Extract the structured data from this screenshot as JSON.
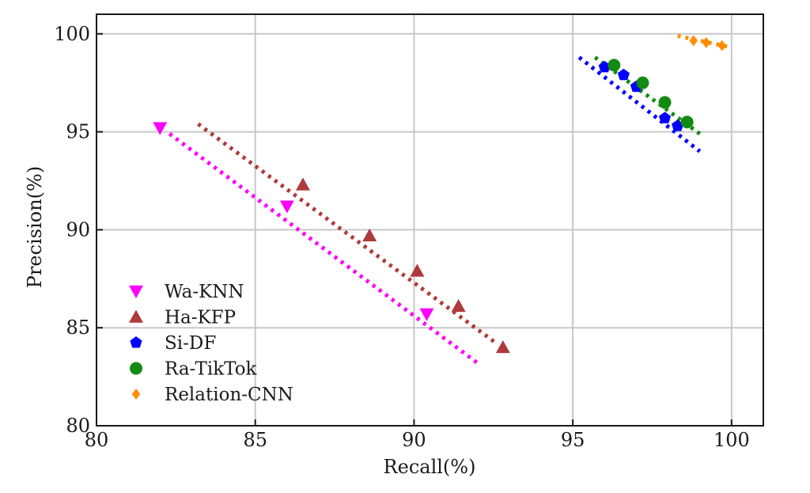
{
  "chart_data": {
    "type": "scatter",
    "xlabel": "Recall(%)",
    "ylabel": "Precision(%)",
    "xlim": [
      80,
      101
    ],
    "ylim": [
      80,
      101
    ],
    "xticks": [
      80,
      85,
      90,
      95,
      100
    ],
    "yticks": [
      80,
      85,
      90,
      95,
      100
    ],
    "grid": true,
    "legend_position": "lower-left",
    "series": [
      {
        "name": "Wa-KNN",
        "marker": "triangle-down",
        "color": "#ff00ff",
        "points": [
          [
            82.0,
            95.2
          ],
          [
            86.0,
            91.2
          ],
          [
            90.4,
            85.7
          ]
        ],
        "trend": [
          [
            82.3,
            94.9
          ],
          [
            92.0,
            83.2
          ]
        ]
      },
      {
        "name": "Ha-KFP",
        "marker": "triangle-up",
        "color": "#b03a3a",
        "points": [
          [
            86.5,
            92.3
          ],
          [
            88.6,
            89.7
          ],
          [
            90.1,
            87.9
          ],
          [
            91.4,
            86.1
          ],
          [
            92.8,
            84.0
          ]
        ],
        "trend": [
          [
            83.2,
            95.4
          ],
          [
            92.6,
            84.2
          ]
        ]
      },
      {
        "name": "Si-DF",
        "marker": "pentagon",
        "color": "#0000ff",
        "points": [
          [
            96.0,
            98.3
          ],
          [
            96.6,
            97.9
          ],
          [
            97.0,
            97.3
          ],
          [
            97.9,
            95.7
          ],
          [
            98.3,
            95.3
          ]
        ],
        "trend": [
          [
            95.2,
            98.8
          ],
          [
            99.0,
            94.0
          ]
        ]
      },
      {
        "name": "Ra-TikTok",
        "marker": "circle",
        "color": "#138a13",
        "points": [
          [
            96.3,
            98.4
          ],
          [
            97.2,
            97.5
          ],
          [
            97.9,
            96.5
          ],
          [
            98.6,
            95.5
          ]
        ],
        "trend": [
          [
            95.7,
            98.8
          ],
          [
            99.0,
            94.9
          ]
        ]
      },
      {
        "name": "Relation-CNN",
        "marker": "diamond",
        "color": "#ff8c00",
        "points": [
          [
            98.8,
            99.65
          ],
          [
            99.2,
            99.55
          ],
          [
            99.7,
            99.4
          ]
        ],
        "trend": [
          [
            98.3,
            99.9
          ],
          [
            100.0,
            99.3
          ]
        ]
      }
    ]
  }
}
